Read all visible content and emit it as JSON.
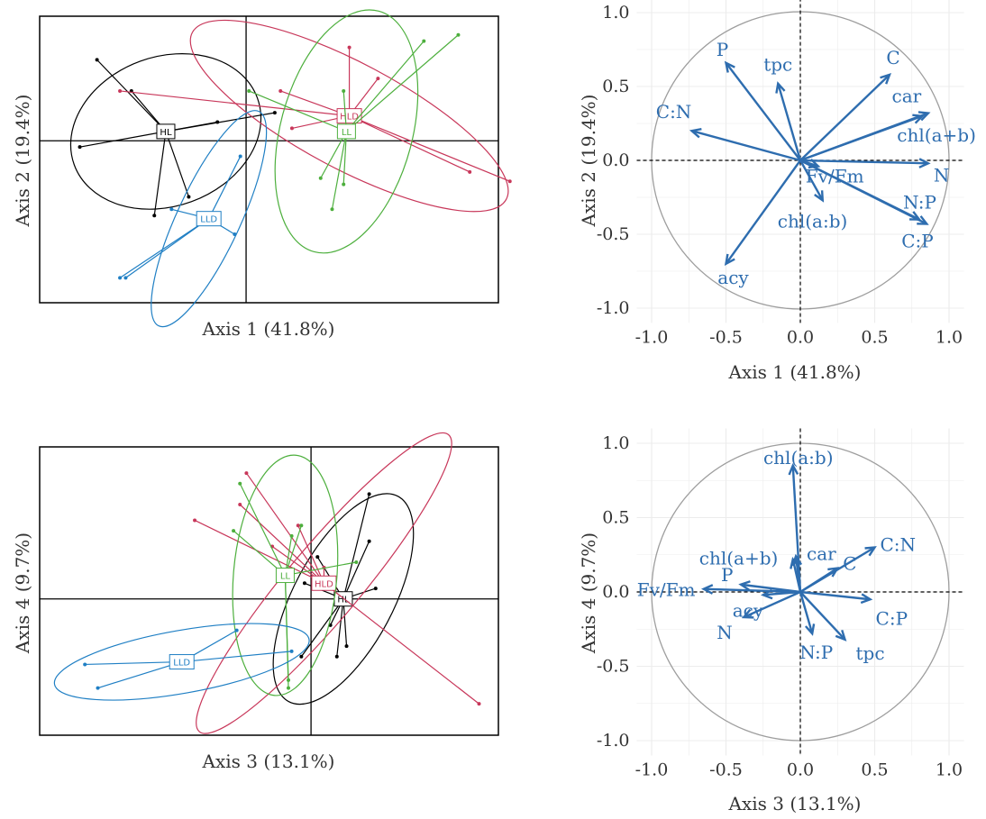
{
  "panels": {
    "p1": {
      "xlabel": "Axis 1 (41.8%)",
      "ylabel": "Axis 2 (19.4%)"
    },
    "p2": {
      "xlabel": "Axis 1 (41.8%)",
      "ylabel": "Axis 2 (19.4%)"
    },
    "p3": {
      "xlabel": "Axis 3 (13.1%)",
      "ylabel": "Axis 4 (9.7%)"
    },
    "p4": {
      "xlabel": "Axis 3 (13.1%)",
      "ylabel": "Axis 4 (9.7%)"
    }
  },
  "colors": {
    "HL": "#000000",
    "HLD": "#C8375A",
    "LL": "#4DAF3D",
    "LLD": "#1F7FC4",
    "vector": "#2E6DAF",
    "circle": "#9e9e9e",
    "grid": "#ececec"
  },
  "chart_data": [
    {
      "type": "scatter",
      "xlabel": "Axis 1 (41.8%)",
      "ylabel": "Axis 2 (19.4%)",
      "xlim": [
        -3.6,
        4.4
      ],
      "ylim": [
        -2.6,
        2.0
      ],
      "groups": [
        {
          "name": "HL",
          "centroid": [
            -1.4,
            0.15
          ],
          "ellipse": {
            "rx": 1.7,
            "ry": 1.2,
            "angle": -20
          },
          "points": [
            [
              -2.6,
              1.3
            ],
            [
              -2.0,
              0.8
            ],
            [
              -2.9,
              -0.1
            ],
            [
              -1.6,
              -1.2
            ],
            [
              -1.0,
              -0.9
            ],
            [
              -0.5,
              0.3
            ],
            [
              0.5,
              0.45
            ]
          ]
        },
        {
          "name": "HLD",
          "centroid": [
            1.8,
            0.4
          ],
          "ellipse": {
            "rx": 3.1,
            "ry": 0.85,
            "angle": 28
          },
          "points": [
            [
              -2.2,
              0.8
            ],
            [
              0.6,
              0.8
            ],
            [
              2.3,
              1.0
            ],
            [
              1.8,
              1.5
            ],
            [
              3.9,
              -0.5
            ],
            [
              4.6,
              -0.65
            ],
            [
              0.8,
              0.2
            ]
          ]
        },
        {
          "name": "LL",
          "centroid": [
            1.75,
            0.15
          ],
          "ellipse": {
            "rx": 1.15,
            "ry": 2.0,
            "angle": 15
          },
          "points": [
            [
              3.7,
              1.7
            ],
            [
              3.1,
              1.6
            ],
            [
              1.7,
              0.8
            ],
            [
              0.05,
              0.8
            ],
            [
              1.3,
              -0.6
            ],
            [
              1.7,
              -0.7
            ],
            [
              1.5,
              -1.1
            ]
          ]
        },
        {
          "name": "LLD",
          "centroid": [
            -0.65,
            -1.25
          ],
          "ellipse": {
            "rx": 0.55,
            "ry": 1.9,
            "angle": 25
          },
          "points": [
            [
              -0.1,
              -0.25
            ],
            [
              -1.3,
              -1.1
            ],
            [
              -0.2,
              -1.5
            ],
            [
              -2.2,
              -2.2
            ],
            [
              -2.1,
              -2.2
            ]
          ]
        }
      ]
    },
    {
      "type": "scatter",
      "subtype": "correlation-circle",
      "xlabel": "Axis 1 (41.8%)",
      "ylabel": "Axis 2 (19.4%)",
      "xlim": [
        -1.0,
        1.0
      ],
      "ylim": [
        -1.0,
        1.0
      ],
      "x_ticks": [
        "-1.0",
        "-0.5",
        "0.0",
        "0.5",
        "1.0"
      ],
      "y_ticks": [
        "-1.0",
        "-0.5",
        "0.0",
        "0.5",
        "1.0"
      ],
      "vectors": [
        {
          "name": "P",
          "x": -0.5,
          "y": 0.66
        },
        {
          "name": "tpc",
          "x": -0.15,
          "y": 0.52
        },
        {
          "name": "C",
          "x": 0.6,
          "y": 0.58
        },
        {
          "name": "car",
          "x": 0.86,
          "y": 0.32
        },
        {
          "name": "chl(a+b)",
          "x": 0.82,
          "y": 0.3
        },
        {
          "name": "C:N",
          "x": -0.73,
          "y": 0.2
        },
        {
          "name": "Fv/Fm",
          "x": 0.12,
          "y": -0.04
        },
        {
          "name": "N",
          "x": 0.86,
          "y": -0.02
        },
        {
          "name": "N:P",
          "x": 0.8,
          "y": -0.4
        },
        {
          "name": "C:P",
          "x": 0.85,
          "y": -0.43
        },
        {
          "name": "chl(a:b)",
          "x": 0.15,
          "y": -0.27
        },
        {
          "name": "acy",
          "x": -0.5,
          "y": -0.7
        }
      ]
    },
    {
      "type": "scatter",
      "xlabel": "Axis 3 (13.1%)",
      "ylabel": "Axis 4 (9.7%)",
      "xlim": [
        -4.2,
        2.9
      ],
      "ylim": [
        -2.6,
        2.9
      ],
      "groups": [
        {
          "name": "HL",
          "centroid": [
            0.5,
            0.0
          ],
          "ellipse": {
            "rx": 1.8,
            "ry": 0.95,
            "angle": -62
          },
          "points": [
            [
              0.9,
              2.0
            ],
            [
              0.9,
              1.1
            ],
            [
              0.1,
              0.8
            ],
            [
              -0.1,
              0.3
            ],
            [
              1.0,
              0.2
            ],
            [
              0.3,
              -0.5
            ],
            [
              0.4,
              -1.1
            ],
            [
              0.55,
              -0.9
            ],
            [
              -0.15,
              -1.1
            ]
          ]
        },
        {
          "name": "HLD",
          "centroid": [
            0.2,
            0.3
          ],
          "ellipse": {
            "rx": 3.0,
            "ry": 0.7,
            "angle": -50
          },
          "points": [
            [
              -1.0,
              2.4
            ],
            [
              -1.1,
              1.8
            ],
            [
              -0.2,
              1.4
            ],
            [
              -1.8,
              1.5
            ],
            [
              0.2,
              0.6
            ],
            [
              2.6,
              -2.0
            ],
            [
              -0.6,
              1.0
            ]
          ]
        },
        {
          "name": "LL",
          "centroid": [
            -0.4,
            0.45
          ],
          "ellipse": {
            "rx": 0.8,
            "ry": 2.3,
            "angle": 5
          },
          "points": [
            [
              -1.1,
              2.2
            ],
            [
              -0.15,
              1.4
            ],
            [
              -1.2,
              1.3
            ],
            [
              -0.3,
              1.2
            ],
            [
              -0.35,
              -1.55
            ],
            [
              -0.35,
              -1.7
            ],
            [
              0.7,
              0.7
            ]
          ]
        },
        {
          "name": "LLD",
          "centroid": [
            -2.0,
            -1.2
          ],
          "ellipse": {
            "rx": 2.0,
            "ry": 0.6,
            "angle": -10
          },
          "points": [
            [
              -3.5,
              -1.25
            ],
            [
              -3.3,
              -1.7
            ],
            [
              -1.15,
              -0.6
            ],
            [
              -0.3,
              -1.0
            ]
          ]
        }
      ]
    },
    {
      "type": "scatter",
      "subtype": "correlation-circle",
      "xlabel": "Axis 3 (13.1%)",
      "ylabel": "Axis 4 (9.7%)",
      "xlim": [
        -1.0,
        1.0
      ],
      "ylim": [
        -1.0,
        1.0
      ],
      "x_ticks": [
        "-1.0",
        "-0.5",
        "0.0",
        "0.5",
        "1.0"
      ],
      "y_ticks": [
        "-1.0",
        "-0.5",
        "0.0",
        "0.5",
        "1.0"
      ],
      "vectors": [
        {
          "name": "chl(a:b)",
          "x": -0.05,
          "y": 0.85
        },
        {
          "name": "chl(a+b)",
          "x": -0.05,
          "y": 0.22
        },
        {
          "name": "car",
          "x": -0.03,
          "y": 0.24
        },
        {
          "name": "C",
          "x": 0.25,
          "y": 0.16
        },
        {
          "name": "C:N",
          "x": 0.5,
          "y": 0.3
        },
        {
          "name": "P",
          "x": -0.4,
          "y": 0.05
        },
        {
          "name": "Fv/Fm",
          "x": -0.65,
          "y": 0.02
        },
        {
          "name": "acy",
          "x": -0.25,
          "y": -0.02
        },
        {
          "name": "N",
          "x": -0.38,
          "y": -0.17
        },
        {
          "name": "N:P",
          "x": 0.08,
          "y": -0.28
        },
        {
          "name": "C:P",
          "x": 0.47,
          "y": -0.05
        },
        {
          "name": "tpc",
          "x": 0.3,
          "y": -0.32
        }
      ]
    }
  ]
}
